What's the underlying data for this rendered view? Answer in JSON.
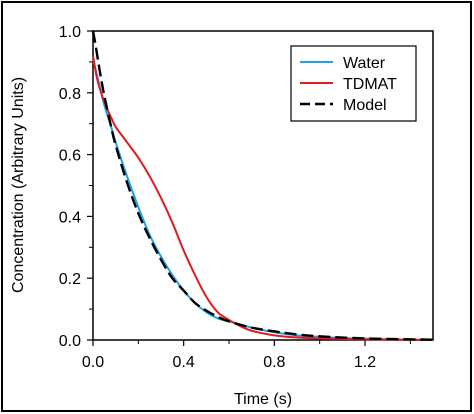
{
  "chart_data": {
    "type": "line",
    "xlabel": "Time (s)",
    "ylabel": "Concentration (Arbitrary Units)",
    "xlim": [
      0.0,
      1.5
    ],
    "ylim": [
      0.0,
      1.0
    ],
    "x_ticks": [
      0.0,
      0.4,
      0.8,
      1.2
    ],
    "x_tick_labels": [
      "0.0",
      "0.4",
      "0.8",
      "1.2"
    ],
    "y_ticks": [
      0.0,
      0.2,
      0.4,
      0.6,
      0.8,
      1.0
    ],
    "y_tick_labels": [
      "0.0",
      "0.2",
      "0.4",
      "0.6",
      "0.8",
      "1.0"
    ],
    "grid": false,
    "legend_position": "top-right",
    "series": [
      {
        "name": "Water",
        "color": "#1aa3e8",
        "style": "solid",
        "x": [
          0.0,
          0.02,
          0.05,
          0.08,
          0.1,
          0.15,
          0.2,
          0.25,
          0.3,
          0.35,
          0.4,
          0.45,
          0.5,
          0.55,
          0.6,
          0.7,
          0.8,
          0.9,
          1.0,
          1.2,
          1.5
        ],
        "y": [
          0.91,
          0.85,
          0.76,
          0.69,
          0.64,
          0.53,
          0.43,
          0.34,
          0.27,
          0.21,
          0.16,
          0.12,
          0.09,
          0.07,
          0.06,
          0.04,
          0.025,
          0.015,
          0.01,
          0.004,
          0.0
        ]
      },
      {
        "name": "TDMAT",
        "color": "#e31a1c",
        "style": "solid",
        "x": [
          0.0,
          0.02,
          0.05,
          0.08,
          0.1,
          0.15,
          0.2,
          0.25,
          0.3,
          0.35,
          0.4,
          0.45,
          0.5,
          0.55,
          0.6,
          0.65,
          0.7,
          0.8,
          0.9,
          1.0,
          1.2,
          1.5
        ],
        "y": [
          0.92,
          0.84,
          0.77,
          0.72,
          0.69,
          0.64,
          0.59,
          0.53,
          0.46,
          0.38,
          0.29,
          0.21,
          0.14,
          0.09,
          0.065,
          0.045,
          0.03,
          0.015,
          0.008,
          0.005,
          0.002,
          0.0
        ]
      },
      {
        "name": "Model",
        "color": "#000000",
        "style": "dashed",
        "x": [
          0.0,
          0.01,
          0.03,
          0.05,
          0.08,
          0.1,
          0.15,
          0.2,
          0.25,
          0.3,
          0.35,
          0.4,
          0.45,
          0.5,
          0.55,
          0.6,
          0.7,
          0.8,
          0.9,
          1.0,
          1.2,
          1.5
        ],
        "y": [
          1.0,
          0.96,
          0.87,
          0.79,
          0.69,
          0.63,
          0.51,
          0.41,
          0.33,
          0.26,
          0.2,
          0.16,
          0.12,
          0.095,
          0.075,
          0.06,
          0.04,
          0.028,
          0.018,
          0.012,
          0.005,
          0.001
        ]
      }
    ]
  }
}
